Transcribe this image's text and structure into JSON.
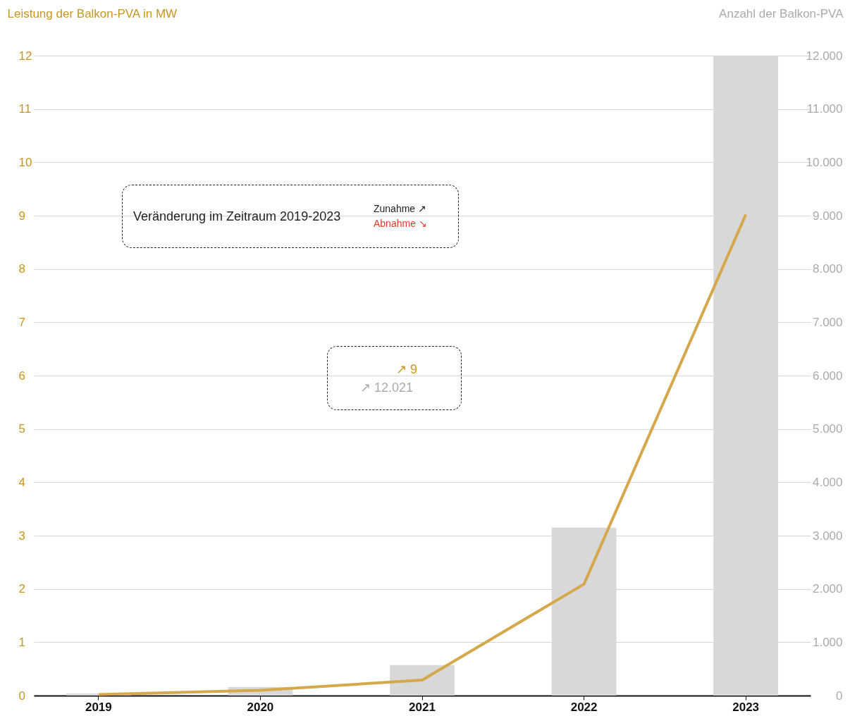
{
  "chart_data": {
    "type": "bar",
    "ylabel": "Leistung der Balkon-PVA in MW",
    "y2label": "Anzahl der Balkon-PVA",
    "categories": [
      "2019",
      "2020",
      "2021",
      "2022",
      "2023"
    ],
    "series": [
      {
        "axis": "y2",
        "color": "#d9d8d8",
        "values": [
          40,
          160,
          570,
          3150,
          12000
        ]
      },
      {
        "type": "line",
        "color": "#d4a84b",
        "values": [
          0.02,
          0.1,
          0.29,
          2.09,
          9.02
        ]
      }
    ],
    "ylim": [
      0,
      12
    ],
    "yticks": [
      0,
      1,
      2,
      3,
      4,
      5,
      6,
      7,
      8,
      9,
      10,
      11,
      12
    ],
    "y2lim": [
      0,
      12000
    ],
    "y2ticks": [
      0,
      {
        "value": 1000,
        "label": "1.000"
      },
      {
        "value": 2000,
        "label": "2.000"
      },
      {
        "value": 3000,
        "label": "3.000"
      },
      {
        "value": 4000,
        "label": "4.000"
      },
      {
        "value": 5000,
        "label": "5.000"
      },
      {
        "value": 6000,
        "label": "6.000"
      },
      {
        "value": 7000,
        "label": "7.000"
      },
      {
        "value": 8000,
        "label": "8.000"
      },
      {
        "value": 9000,
        "label": "9.000"
      },
      {
        "value": 10000,
        "label": "10.000"
      },
      {
        "value": 11000,
        "label": "11.000"
      },
      {
        "value": 12000,
        "label": "12.000"
      }
    ],
    "grid": "y",
    "annotations": [
      "Veränderung im Zeitraum 2019-2023",
      "Zunahme ↗",
      "Abnahme ↘",
      "↗ 9",
      "↗ 12.021"
    ]
  }
}
